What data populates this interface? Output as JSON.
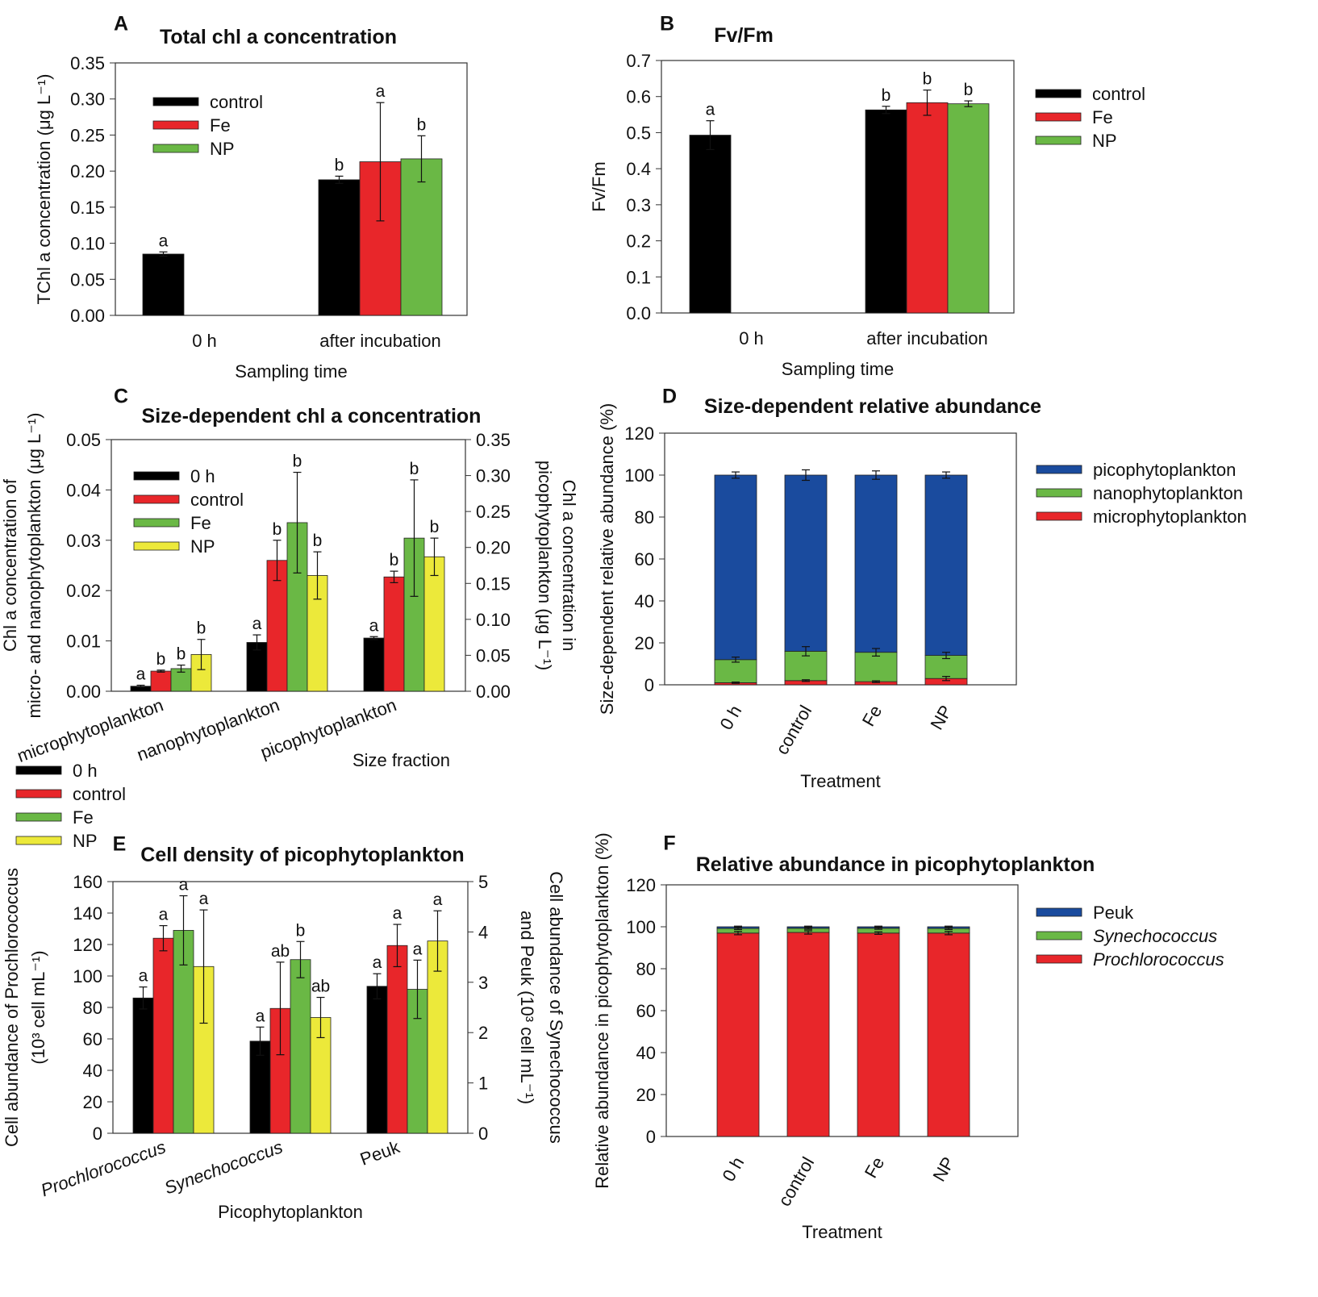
{
  "chart_data": [
    {
      "panel": "A",
      "type": "bar",
      "title": "Total chl a concentration",
      "xlabel": "Sampling time",
      "ylabel": [
        "TChl a concentration (μg L⁻¹)"
      ],
      "ylim": [
        0,
        0.35
      ],
      "yticks": [
        "0.00",
        "0.05",
        "0.10",
        "0.15",
        "0.20",
        "0.25",
        "0.30",
        "0.35"
      ],
      "categories": [
        "0 h",
        "after incubation"
      ],
      "legend": "top-left",
      "series": [
        {
          "name": "control",
          "color": "#000000",
          "values": [
            0.085,
            0.188
          ],
          "errors": [
            0.003,
            0.005
          ],
          "letters": [
            "a",
            "b"
          ]
        },
        {
          "name": "Fe",
          "color": "#e8262a",
          "values": [
            null,
            0.213
          ],
          "errors": [
            null,
            0.082
          ],
          "letters": [
            null,
            "a"
          ]
        },
        {
          "name": "NP",
          "color": "#6ab845",
          "values": [
            null,
            0.217
          ],
          "errors": [
            null,
            0.032
          ],
          "letters": [
            null,
            "b"
          ]
        }
      ]
    },
    {
      "panel": "B",
      "type": "bar",
      "title": "Fv/Fm",
      "xlabel": "Sampling time",
      "ylabel": [
        "Fv/Fm"
      ],
      "ylim": [
        0,
        0.7
      ],
      "yticks": [
        "0.0",
        "0.1",
        "0.2",
        "0.3",
        "0.4",
        "0.5",
        "0.6",
        "0.7"
      ],
      "categories": [
        "0 h",
        "after incubation"
      ],
      "legend": "right",
      "series": [
        {
          "name": "control",
          "color": "#000000",
          "values": [
            0.493,
            0.563
          ],
          "errors": [
            0.04,
            0.01
          ],
          "letters": [
            "a",
            "b"
          ]
        },
        {
          "name": "Fe",
          "color": "#e8262a",
          "values": [
            null,
            0.583
          ],
          "errors": [
            null,
            0.035
          ],
          "letters": [
            null,
            "b"
          ]
        },
        {
          "name": "NP",
          "color": "#6ab845",
          "values": [
            null,
            0.58
          ],
          "errors": [
            null,
            0.008
          ],
          "letters": [
            null,
            "b"
          ]
        }
      ]
    },
    {
      "panel": "C",
      "type": "bar",
      "title": "Size-dependent chl a concentration",
      "xlabel": "Size fraction",
      "ylabel": [
        "Chl a concentration of",
        "micro- and nanophytoplankton (μg L⁻¹)"
      ],
      "ylabel_right": [
        "Chl a concentration in",
        "picophytoplankton (μg L⁻¹)"
      ],
      "ylim": [
        0,
        0.05
      ],
      "yticks": [
        "0.00",
        "0.01",
        "0.02",
        "0.03",
        "0.04",
        "0.05"
      ],
      "ylim_right": [
        0,
        0.35
      ],
      "yticks_right": [
        "0.00",
        "0.05",
        "0.10",
        "0.15",
        "0.20",
        "0.25",
        "0.30",
        "0.35"
      ],
      "categories": [
        "microphytoplankton",
        "nanophytoplankton",
        "picophytoplankton"
      ],
      "category_axis": [
        "left",
        "left",
        "right"
      ],
      "legend": "top-left",
      "series": [
        {
          "name": "0 h",
          "color": "#000000",
          "values": [
            0.001,
            0.0097,
            0.074
          ],
          "errors": [
            0.0002,
            0.0015,
            0.002
          ],
          "letters": [
            "a",
            "a",
            "a"
          ]
        },
        {
          "name": "control",
          "color": "#e8262a",
          "values": [
            0.004,
            0.026,
            0.159
          ],
          "errors": [
            0.0002,
            0.004,
            0.008
          ],
          "letters": [
            "b",
            "b",
            "b"
          ]
        },
        {
          "name": "Fe",
          "color": "#6ab845",
          "values": [
            0.0045,
            0.0335,
            0.213
          ],
          "errors": [
            0.0007,
            0.01,
            0.081
          ],
          "letters": [
            "b",
            "b",
            "b"
          ]
        },
        {
          "name": "NP",
          "color": "#ece93a",
          "values": [
            0.0073,
            0.023,
            0.187
          ],
          "errors": [
            0.003,
            0.0047,
            0.026
          ],
          "letters": [
            "b",
            "b",
            "b"
          ]
        }
      ]
    },
    {
      "panel": "D",
      "type": "bar",
      "stacked": true,
      "title": "Size-dependent relative abundance",
      "xlabel": "Treatment",
      "ylabel": [
        "Size-dependent relative abundance (%)"
      ],
      "ylim": [
        0,
        120
      ],
      "yticks": [
        "0",
        "20",
        "40",
        "60",
        "80",
        "100",
        "120"
      ],
      "categories": [
        "0 h",
        "control",
        "Fe",
        "NP"
      ],
      "legend": "right",
      "series": [
        {
          "name": "microphytoplankton",
          "color": "#e8262a",
          "values": [
            1,
            2,
            1.5,
            3
          ],
          "errors": [
            0.3,
            0.4,
            0.4,
            1
          ]
        },
        {
          "name": "nanophytoplankton",
          "color": "#6ab845",
          "values": [
            11,
            14,
            14,
            11
          ],
          "errors": [
            1.2,
            2.2,
            1.8,
            1.5
          ]
        },
        {
          "name": "picophytoplankton",
          "color": "#1a4b9e",
          "values": [
            88,
            84,
            84.5,
            86
          ],
          "errors": [
            1.5,
            2.5,
            2,
            1.5
          ]
        }
      ]
    },
    {
      "panel": "E",
      "type": "bar",
      "title": "Cell density of picophytoplankton",
      "xlabel": "Picophytoplankton",
      "ylabel": [
        "Cell abundance of Prochlorococcus",
        "(10³ cell mL⁻¹)"
      ],
      "ylabel_right": [
        "Cell abundance of Synechococcus",
        "and Peuk (10³ cell mL⁻¹)"
      ],
      "ylim": [
        0,
        160
      ],
      "yticks": [
        "0",
        "20",
        "40",
        "60",
        "80",
        "100",
        "120",
        "140",
        "160"
      ],
      "ylim_right": [
        0,
        5
      ],
      "yticks_right": [
        "0",
        "1",
        "2",
        "3",
        "4",
        "5"
      ],
      "categories": [
        "Prochlorococcus",
        "Synechococcus",
        "Peuk"
      ],
      "category_axis": [
        "left",
        "right",
        "right"
      ],
      "legend": "outside-top-left",
      "series": [
        {
          "name": "0 h",
          "color": "#000000",
          "values": [
            86,
            1.83,
            2.92
          ],
          "errors": [
            7,
            0.28,
            0.25
          ],
          "letters": [
            "a",
            "a",
            "a"
          ]
        },
        {
          "name": "control",
          "color": "#e8262a",
          "values": [
            124,
            2.48,
            3.73
          ],
          "errors": [
            8,
            0.92,
            0.42
          ],
          "letters": [
            "a",
            "ab",
            "a"
          ]
        },
        {
          "name": "Fe",
          "color": "#6ab845",
          "values": [
            129,
            3.45,
            2.86
          ],
          "errors": [
            22,
            0.36,
            0.58
          ],
          "letters": [
            "a",
            "b",
            "a"
          ]
        },
        {
          "name": "NP",
          "color": "#ece93a",
          "values": [
            106,
            2.3,
            3.82
          ],
          "errors": [
            36,
            0.4,
            0.6
          ],
          "letters": [
            "a",
            "ab",
            "a"
          ]
        }
      ]
    },
    {
      "panel": "F",
      "type": "bar",
      "stacked": true,
      "title": "Relative abundance  in picophytoplankton",
      "xlabel": "Treatment",
      "ylabel": [
        "Relative abundance  in picophytoplankton (%)"
      ],
      "ylim": [
        0,
        120
      ],
      "yticks": [
        "0",
        "20",
        "40",
        "60",
        "80",
        "100",
        "120"
      ],
      "categories": [
        "0 h",
        "control",
        "Fe",
        "NP"
      ],
      "legend": "right",
      "series": [
        {
          "name": "Prochlorococcus",
          "color": "#e8262a",
          "values": [
            97,
            97.3,
            97,
            97
          ],
          "errors": [
            0.8,
            0.8,
            0.6,
            0.8
          ]
        },
        {
          "name": "Synechococcus",
          "color": "#6ab845",
          "values": [
            2.2,
            2,
            2.3,
            2.2
          ],
          "errors": [
            0.5,
            0.5,
            0.5,
            0.5
          ]
        },
        {
          "name": "Peuk",
          "color": "#1a4b9e",
          "values": [
            0.8,
            0.7,
            0.7,
            0.8
          ],
          "errors": [
            0.3,
            0.3,
            0.3,
            0.3
          ]
        }
      ]
    }
  ]
}
